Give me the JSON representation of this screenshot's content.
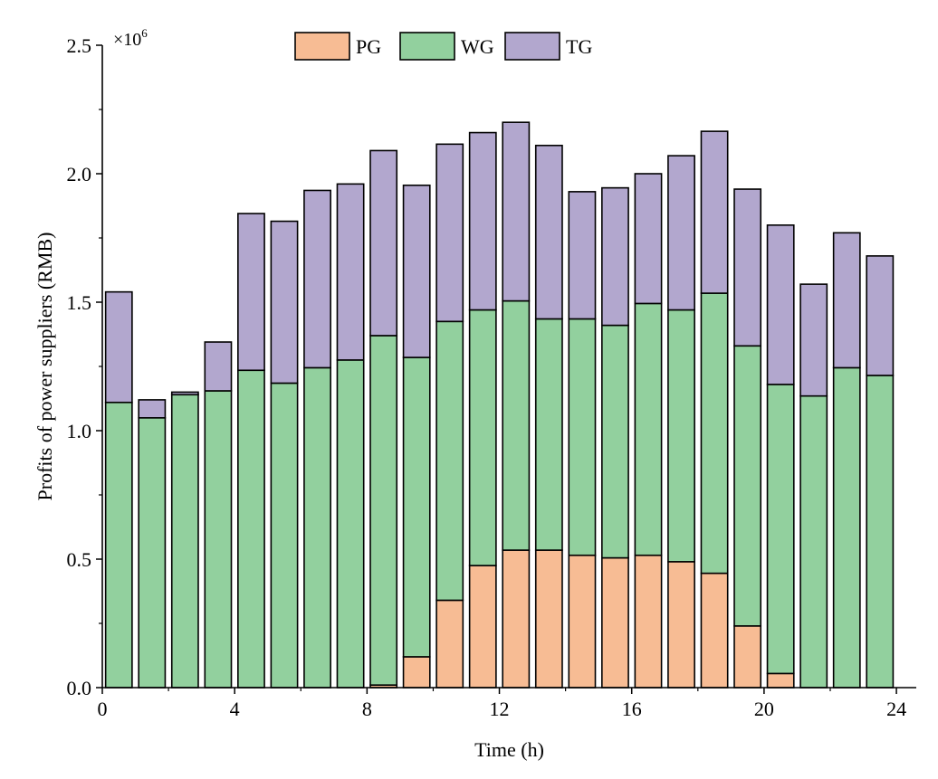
{
  "chart_data": {
    "type": "bar",
    "stacked": true,
    "xlabel": "Time (h)",
    "ylabel": "Profits of power suppliers (RMB)",
    "y_multiplier": "×10",
    "y_multiplier_exp": "6",
    "xlim": [
      0,
      24.6
    ],
    "ylim": [
      0,
      2.5
    ],
    "x_ticks": [
      0,
      4,
      8,
      12,
      16,
      20,
      24
    ],
    "y_ticks": [
      0.0,
      0.5,
      1.0,
      1.5,
      2.0,
      2.5
    ],
    "x_tick_labels": [
      "0",
      "4",
      "8",
      "12",
      "16",
      "20",
      "24"
    ],
    "y_tick_labels": [
      "0.0",
      "0.5",
      "1.0",
      "1.5",
      "2.0",
      "2.5"
    ],
    "legend_position": "top-center",
    "grid": false,
    "categories": [
      1,
      2,
      3,
      4,
      5,
      6,
      7,
      8,
      9,
      10,
      11,
      12,
      13,
      14,
      15,
      16,
      17,
      18,
      19,
      20,
      21,
      22,
      23,
      24
    ],
    "series": [
      {
        "name": "PG",
        "color": "#F7BC94",
        "values": [
          0,
          0,
          0,
          0,
          0,
          0,
          0,
          0,
          0.01,
          0.12,
          0.34,
          0.475,
          0.535,
          0.535,
          0.515,
          0.505,
          0.515,
          0.49,
          0.445,
          0.24,
          0.055,
          0,
          0,
          0
        ]
      },
      {
        "name": "WG",
        "color": "#92D09E",
        "values": [
          1.11,
          1.05,
          1.14,
          1.155,
          1.235,
          1.185,
          1.245,
          1.275,
          1.36,
          1.165,
          1.085,
          0.995,
          0.97,
          0.9,
          0.92,
          0.905,
          0.98,
          0.98,
          1.09,
          1.09,
          1.125,
          1.135,
          1.245,
          1.215
        ]
      },
      {
        "name": "TG",
        "color": "#B2A7CE",
        "values": [
          0.43,
          0.07,
          0.01,
          0.19,
          0.61,
          0.63,
          0.69,
          0.685,
          0.72,
          0.67,
          0.69,
          0.69,
          0.695,
          0.675,
          0.495,
          0.535,
          0.505,
          0.6,
          0.63,
          0.61,
          0.62,
          0.435,
          0.525,
          0.465
        ]
      }
    ]
  }
}
